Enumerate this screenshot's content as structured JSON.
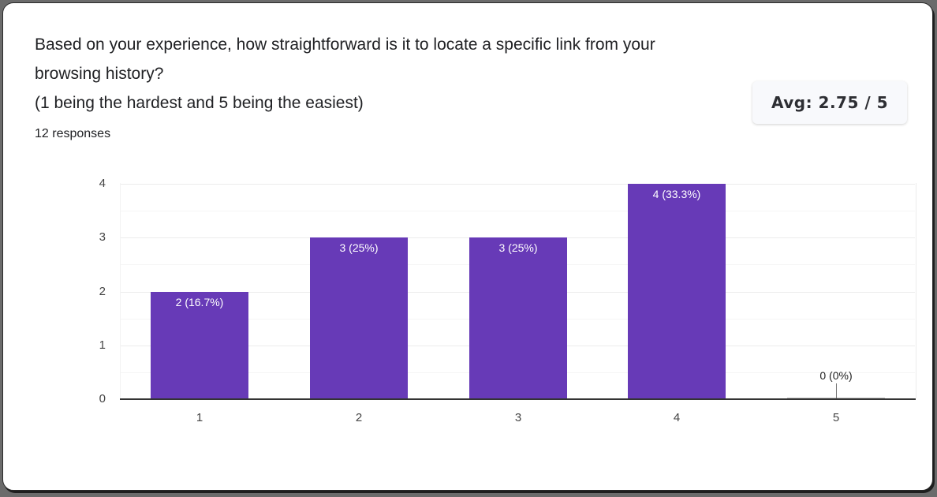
{
  "question": {
    "lines": [
      "Based on your experience, how straightforward is it to locate a specific link from your",
      "browsing history?",
      "(1 being the hardest and 5 being the easiest)"
    ],
    "responses": "12 responses"
  },
  "average_badge": "Avg: 2.75 / 5",
  "colors": {
    "bar": "#673ab7",
    "text": "#202124"
  },
  "chart_data": {
    "type": "bar",
    "title": "Based on your experience, how straightforward is it to locate a specific link from your browsing history? (1 being the hardest and 5 being the easiest)",
    "categories": [
      "1",
      "2",
      "3",
      "4",
      "5"
    ],
    "values": [
      2,
      3,
      3,
      4,
      0
    ],
    "percentages": [
      "16.7%",
      "25%",
      "25%",
      "33.3%",
      "0%"
    ],
    "data_labels": [
      "2 (16.7%)",
      "3 (25%)",
      "3 (25%)",
      "4 (33.3%)",
      "0 (0%)"
    ],
    "xlabel": "",
    "ylabel": "",
    "yticks": [
      "0",
      "1",
      "2",
      "3",
      "4"
    ],
    "ylim": [
      0,
      4
    ],
    "grid": true,
    "legend": "none",
    "responses": 12,
    "average": 2.75
  }
}
